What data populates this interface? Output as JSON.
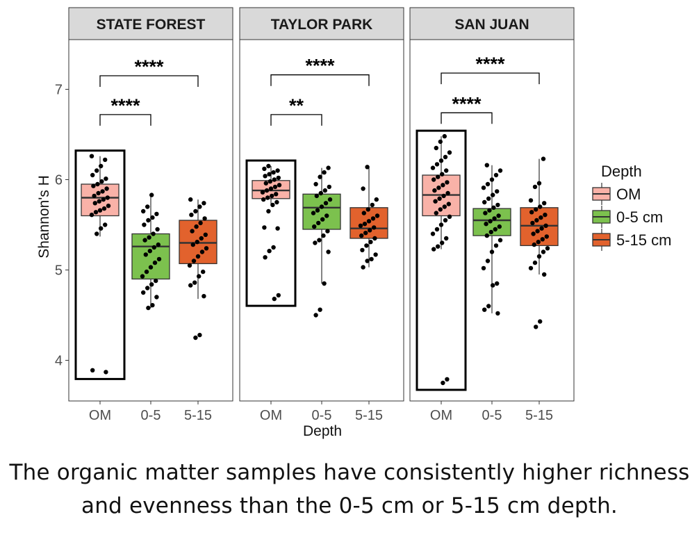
{
  "caption": {
    "line1": "The organic matter samples have consistently higher richness",
    "line2": "and evenness than the 0-5 cm or 5-15 cm depth."
  },
  "chart_data": {
    "type": "box",
    "xlabel": "Depth",
    "ylabel": "Shannon's H",
    "ylim": [
      3.55,
      7.55
    ],
    "yticks": [
      4,
      5,
      6,
      7
    ],
    "categories": [
      "OM",
      "0-5",
      "5-15"
    ],
    "legend": {
      "title": "Depth",
      "position": "right",
      "entries": [
        "OM",
        "0-5 cm",
        "5-15 cm"
      ]
    },
    "colors": {
      "OM": "#f9b2a8",
      "0-5": "#7cc14e",
      "5-15": "#e2622d"
    },
    "panels": [
      {
        "title": "STATE FOREST",
        "boxes": [
          {
            "group": "OM",
            "q1": 5.6,
            "median": 5.8,
            "q3": 5.95,
            "whisker_low": 5.37,
            "whisker_high": 6.26,
            "points": [
              6.26,
              6.22,
              6.15,
              6.1,
              6.05,
              6.01,
              5.98,
              5.95,
              5.93,
              5.9,
              5.87,
              5.85,
              5.82,
              5.8,
              5.78,
              5.76,
              5.74,
              5.71,
              5.68,
              5.66,
              5.64,
              5.61,
              5.5,
              5.46,
              5.4,
              3.89,
              3.87
            ]
          },
          {
            "group": "0-5",
            "q1": 4.9,
            "median": 5.26,
            "q3": 5.4,
            "whisker_low": 4.58,
            "whisker_high": 5.83,
            "points": [
              5.83,
              5.7,
              5.65,
              5.62,
              5.58,
              5.55,
              5.5,
              5.45,
              5.4,
              5.36,
              5.33,
              5.28,
              5.25,
              5.21,
              5.17,
              5.12,
              5.08,
              5.03,
              4.98,
              4.93,
              4.88,
              4.84,
              4.8,
              4.75,
              4.7,
              4.61,
              4.58
            ]
          },
          {
            "group": "5-15",
            "q1": 5.07,
            "median": 5.3,
            "q3": 5.55,
            "whisker_low": 4.68,
            "whisker_high": 5.78,
            "points": [
              5.78,
              5.74,
              5.7,
              5.65,
              5.61,
              5.57,
              5.52,
              5.48,
              5.43,
              5.39,
              5.35,
              5.31,
              5.28,
              5.24,
              5.2,
              5.15,
              5.1,
              5.05,
              4.98,
              4.93,
              4.86,
              4.83,
              4.71,
              4.28,
              4.25
            ]
          }
        ],
        "brackets": [
          {
            "from": "OM",
            "to": "5-15",
            "label": "****",
            "y": 7.15
          },
          {
            "from": "OM",
            "to": "0-5",
            "label": "****",
            "y": 6.72
          }
        ]
      },
      {
        "title": "TAYLOR PARK",
        "boxes": [
          {
            "group": "OM",
            "q1": 5.79,
            "median": 5.88,
            "q3": 5.99,
            "whisker_low": 5.72,
            "whisker_high": 6.15,
            "points": [
              6.15,
              6.12,
              6.1,
              6.08,
              6.06,
              6.04,
              6.02,
              6.0,
              5.98,
              5.96,
              5.94,
              5.92,
              5.9,
              5.88,
              5.86,
              5.84,
              5.82,
              5.8,
              5.78,
              5.75,
              5.72,
              5.65,
              5.47,
              5.46,
              5.25,
              5.21,
              5.14,
              4.72,
              4.68
            ]
          },
          {
            "group": "0-5",
            "q1": 5.45,
            "median": 5.69,
            "q3": 5.84,
            "whisker_low": 4.85,
            "whisker_high": 6.13,
            "points": [
              6.13,
              6.08,
              6.03,
              5.95,
              5.92,
              5.88,
              5.85,
              5.82,
              5.78,
              5.74,
              5.7,
              5.66,
              5.63,
              5.6,
              5.56,
              5.52,
              5.48,
              5.43,
              5.38,
              5.33,
              5.3,
              5.2,
              4.85,
              4.56,
              4.5
            ]
          },
          {
            "group": "5-15",
            "q1": 5.35,
            "median": 5.46,
            "q3": 5.69,
            "whisker_low": 5.03,
            "whisker_high": 6.14,
            "points": [
              6.14,
              5.9,
              5.78,
              5.72,
              5.67,
              5.63,
              5.6,
              5.57,
              5.54,
              5.51,
              5.49,
              5.47,
              5.44,
              5.41,
              5.38,
              5.35,
              5.31,
              5.27,
              5.22,
              5.17,
              5.12,
              5.1,
              5.03
            ]
          }
        ],
        "brackets": [
          {
            "from": "OM",
            "to": "5-15",
            "label": "****",
            "y": 7.16
          },
          {
            "from": "OM",
            "to": "0-5",
            "label": "**",
            "y": 6.72
          }
        ]
      },
      {
        "title": "SAN JUAN",
        "boxes": [
          {
            "group": "OM",
            "q1": 5.6,
            "median": 5.83,
            "q3": 6.05,
            "whisker_low": 5.23,
            "whisker_high": 6.48,
            "points": [
              6.48,
              6.42,
              6.35,
              6.3,
              6.25,
              6.21,
              6.17,
              6.13,
              6.1,
              6.06,
              6.03,
              6.0,
              5.97,
              5.94,
              5.91,
              5.88,
              5.85,
              5.82,
              5.79,
              5.76,
              5.73,
              5.7,
              5.67,
              5.63,
              5.59,
              5.55,
              5.5,
              5.45,
              5.4,
              5.35,
              5.3,
              5.26,
              5.23,
              3.79,
              3.75
            ]
          },
          {
            "group": "0-5",
            "q1": 5.38,
            "median": 5.55,
            "q3": 5.68,
            "whisker_low": 4.52,
            "whisker_high": 6.16,
            "points": [
              6.16,
              6.1,
              6.05,
              6.0,
              5.95,
              5.91,
              5.87,
              5.83,
              5.79,
              5.75,
              5.72,
              5.69,
              5.66,
              5.63,
              5.6,
              5.57,
              5.54,
              5.51,
              5.48,
              5.45,
              5.42,
              5.38,
              5.33,
              5.27,
              5.2,
              5.1,
              5.02,
              4.85,
              4.83,
              4.6,
              4.56,
              4.52
            ]
          },
          {
            "group": "5-15",
            "q1": 5.27,
            "median": 5.49,
            "q3": 5.69,
            "whisker_low": 4.95,
            "whisker_high": 6.23,
            "points": [
              6.23,
              5.96,
              5.92,
              5.77,
              5.74,
              5.7,
              5.67,
              5.64,
              5.61,
              5.58,
              5.55,
              5.52,
              5.49,
              5.46,
              5.43,
              5.4,
              5.37,
              5.34,
              5.31,
              5.28,
              5.24,
              5.2,
              5.15,
              5.08,
              5.02,
              4.95,
              4.43,
              4.37
            ]
          }
        ],
        "brackets": [
          {
            "from": "OM",
            "to": "5-15",
            "label": "****",
            "y": 7.18
          },
          {
            "from": "OM",
            "to": "0-5",
            "label": "****",
            "y": 6.74
          }
        ]
      }
    ],
    "highlight": {
      "group": "OM",
      "outline": "black rectangle around OM box in every panel"
    }
  }
}
